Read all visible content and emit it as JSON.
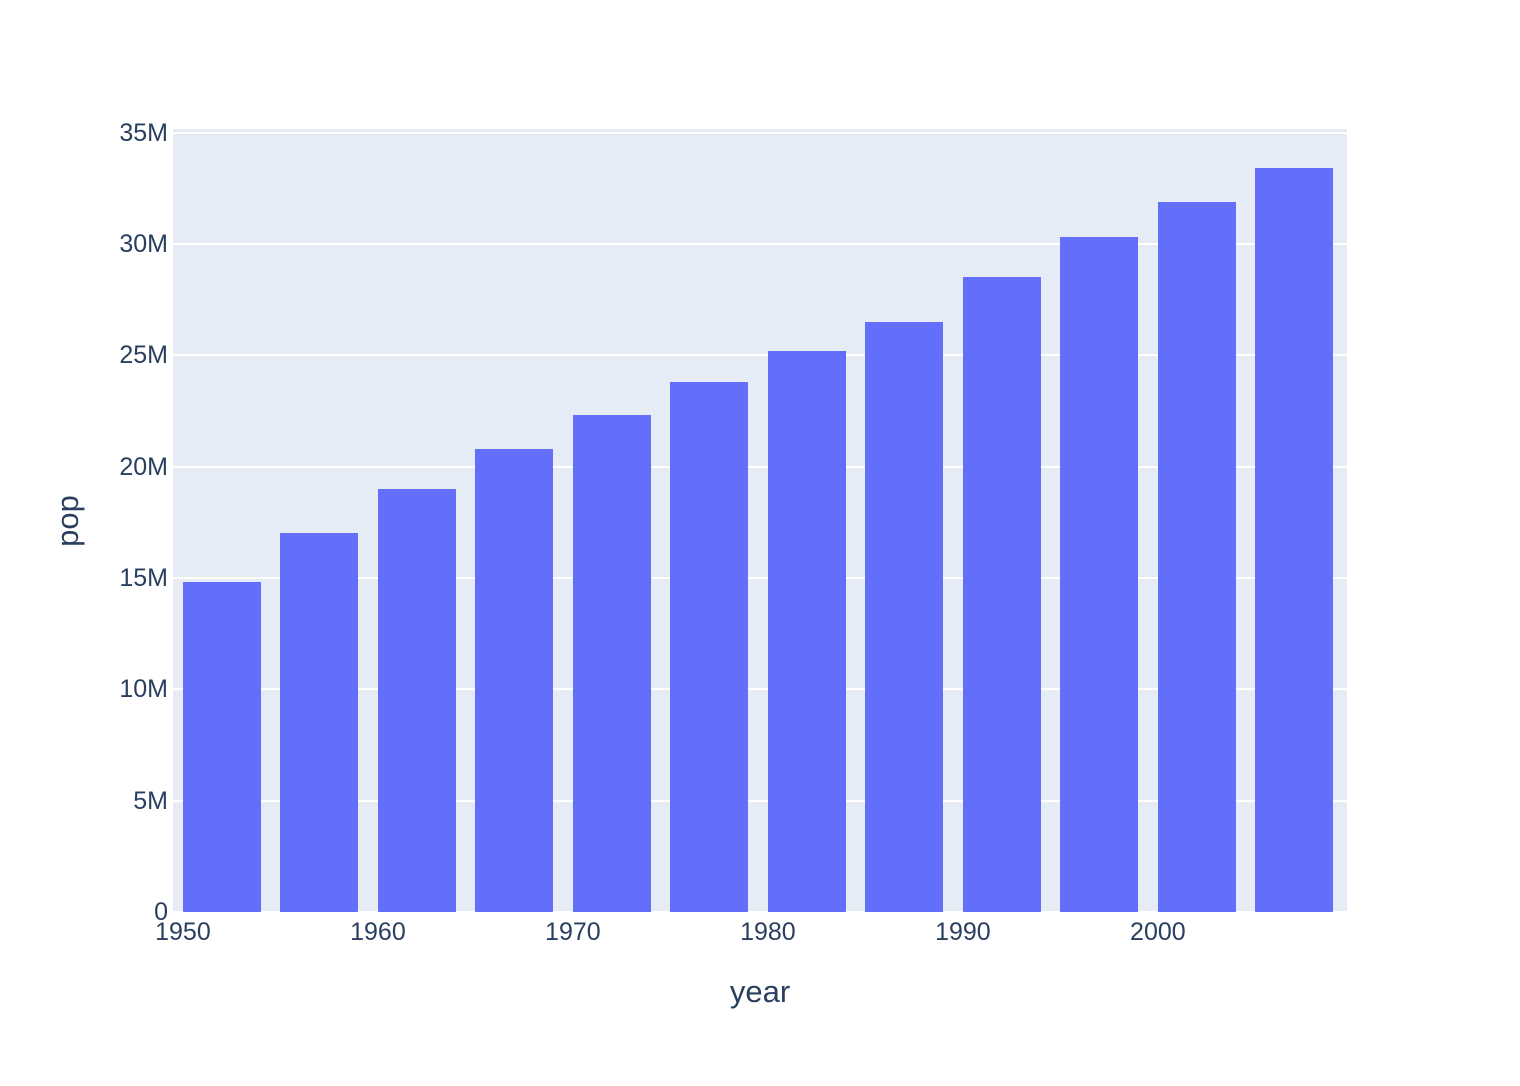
{
  "chart_data": {
    "type": "bar",
    "title": "",
    "xlabel": "year",
    "ylabel": "pop",
    "categories": [
      1952,
      1957,
      1962,
      1967,
      1972,
      1977,
      1982,
      1987,
      1992,
      1997,
      2002,
      2007
    ],
    "values_millions": [
      14.8,
      17.0,
      19.0,
      20.8,
      22.3,
      23.8,
      25.2,
      26.5,
      28.5,
      30.3,
      31.9,
      33.4
    ],
    "series_name": "pop",
    "y_ticks": [
      {
        "value": 0,
        "label": "0"
      },
      {
        "value": 5,
        "label": "5M"
      },
      {
        "value": 10,
        "label": "10M"
      },
      {
        "value": 15,
        "label": "15M"
      },
      {
        "value": 20,
        "label": "20M"
      },
      {
        "value": 25,
        "label": "25M"
      },
      {
        "value": 30,
        "label": "30M"
      },
      {
        "value": 35,
        "label": "35M"
      }
    ],
    "x_ticks": [
      {
        "value": 1950,
        "label": "1950"
      },
      {
        "value": 1960,
        "label": "1960"
      },
      {
        "value": 1970,
        "label": "1970"
      },
      {
        "value": 1980,
        "label": "1980"
      },
      {
        "value": 1990,
        "label": "1990"
      },
      {
        "value": 2000,
        "label": "2000"
      }
    ],
    "x_range_years": [
      1949.49,
      2009.7
    ],
    "y_range_millions": [
      0,
      35.16
    ],
    "bar_width_years": 4,
    "grid": "horizontal-white-lines",
    "legend": "none",
    "colors": {
      "bar": "#636EFA",
      "plot_bg": "#E5ECF6",
      "grid": "#FFFFFF",
      "text": "#2A3F5F",
      "page_bg": "#FFFFFF"
    }
  }
}
